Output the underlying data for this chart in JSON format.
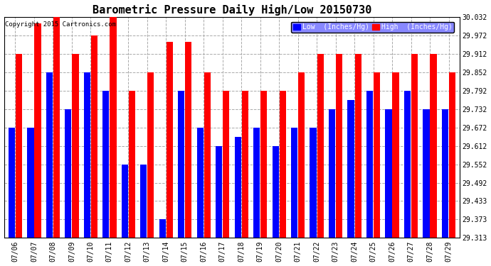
{
  "title": "Barometric Pressure Daily High/Low 20150730",
  "copyright": "Copyright 2015 Cartronics.com",
  "dates": [
    "07/06",
    "07/07",
    "07/08",
    "07/09",
    "07/10",
    "07/11",
    "07/12",
    "07/13",
    "07/14",
    "07/15",
    "07/16",
    "07/17",
    "07/18",
    "07/19",
    "07/20",
    "07/21",
    "07/22",
    "07/23",
    "07/24",
    "07/25",
    "07/26",
    "07/27",
    "07/28",
    "07/29"
  ],
  "low": [
    29.672,
    29.672,
    29.852,
    29.732,
    29.852,
    29.792,
    29.552,
    29.552,
    29.373,
    29.792,
    29.672,
    29.612,
    29.642,
    29.672,
    29.612,
    29.672,
    29.672,
    29.732,
    29.762,
    29.792,
    29.732,
    29.792,
    29.732,
    29.732
  ],
  "high": [
    29.912,
    30.012,
    30.032,
    29.912,
    29.972,
    30.032,
    29.792,
    29.852,
    29.952,
    29.952,
    29.852,
    29.792,
    29.792,
    29.792,
    29.792,
    29.852,
    29.912,
    29.912,
    29.912,
    29.852,
    29.852,
    29.912,
    29.912,
    29.852
  ],
  "ylim_min": 29.313,
  "ylim_max": 30.032,
  "yticks": [
    29.313,
    29.373,
    29.433,
    29.492,
    29.552,
    29.612,
    29.672,
    29.732,
    29.792,
    29.852,
    29.912,
    29.972,
    30.032
  ],
  "low_color": "#0000ff",
  "high_color": "#ff0000",
  "bg_color": "#ffffff",
  "title_fontsize": 11,
  "legend_low_label": "Low  (Inches/Hg)",
  "legend_high_label": "High  (Inches/Hg)"
}
